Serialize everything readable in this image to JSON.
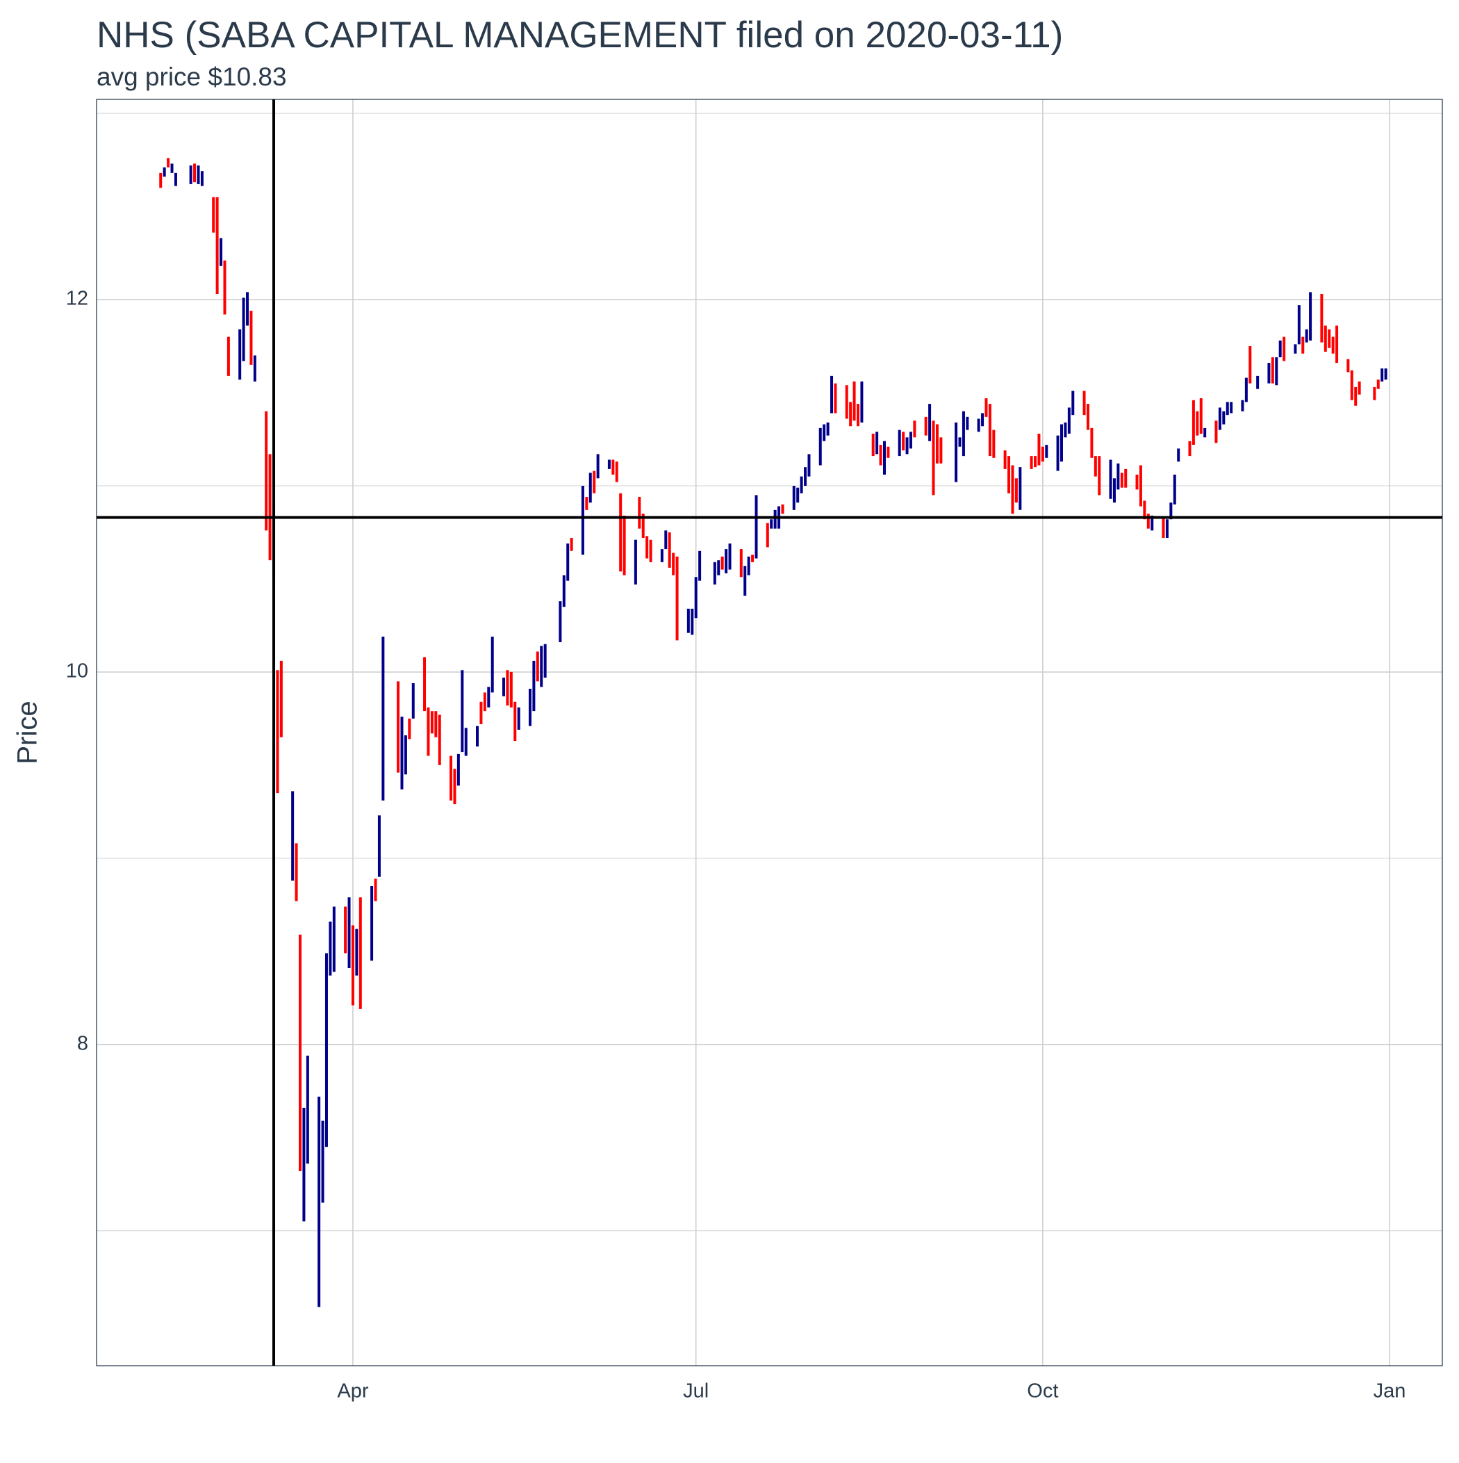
{
  "chart_data": {
    "type": "ohlc",
    "title": "NHS (SABA CAPITAL MANAGEMENT filed on 2020-03-11)",
    "subtitle": "avg price $10.83",
    "y_label": "Price",
    "xlim": [
      "2020-01-24",
      "2021-01-15"
    ],
    "xticks": [
      {
        "value": "2020-04-01",
        "label": "Apr"
      },
      {
        "value": "2020-07-01",
        "label": "Jul"
      },
      {
        "value": "2020-10-01",
        "label": "Oct"
      },
      {
        "value": "2021-01-01",
        "label": "Jan"
      }
    ],
    "ylim": [
      6.275,
      13.075
    ],
    "yticks": [
      8,
      10,
      12
    ],
    "grid": true,
    "minor_grid": true,
    "vline": "2020-03-11",
    "hline": 10.83,
    "x": [
      "2020-02-10",
      "2020-02-11",
      "2020-02-12",
      "2020-02-13",
      "2020-02-14",
      "2020-02-18",
      "2020-02-19",
      "2020-02-20",
      "2020-02-21",
      "2020-02-24",
      "2020-02-25",
      "2020-02-26",
      "2020-02-27",
      "2020-02-28",
      "2020-03-02",
      "2020-03-03",
      "2020-03-04",
      "2020-03-05",
      "2020-03-06",
      "2020-03-09",
      "2020-03-10",
      "2020-03-11",
      "2020-03-12",
      "2020-03-13",
      "2020-03-16",
      "2020-03-17",
      "2020-03-18",
      "2020-03-19",
      "2020-03-20",
      "2020-03-23",
      "2020-03-24",
      "2020-03-25",
      "2020-03-26",
      "2020-03-27",
      "2020-03-30",
      "2020-03-31",
      "2020-04-01",
      "2020-04-02",
      "2020-04-03",
      "2020-04-06",
      "2020-04-07",
      "2020-04-08",
      "2020-04-09",
      "2020-04-13",
      "2020-04-14",
      "2020-04-15",
      "2020-04-16",
      "2020-04-17",
      "2020-04-20",
      "2020-04-21",
      "2020-04-22",
      "2020-04-23",
      "2020-04-24",
      "2020-04-27",
      "2020-04-28",
      "2020-04-29",
      "2020-04-30",
      "2020-05-01",
      "2020-05-04",
      "2020-05-05",
      "2020-05-06",
      "2020-05-07",
      "2020-05-08",
      "2020-05-11",
      "2020-05-12",
      "2020-05-13",
      "2020-05-14",
      "2020-05-15",
      "2020-05-18",
      "2020-05-19",
      "2020-05-20",
      "2020-05-21",
      "2020-05-22",
      "2020-05-26",
      "2020-05-27",
      "2020-05-28",
      "2020-05-29",
      "2020-06-01",
      "2020-06-02",
      "2020-06-03",
      "2020-06-04",
      "2020-06-05",
      "2020-06-08",
      "2020-06-09",
      "2020-06-10",
      "2020-06-11",
      "2020-06-12",
      "2020-06-15",
      "2020-06-16",
      "2020-06-17",
      "2020-06-18",
      "2020-06-19",
      "2020-06-22",
      "2020-06-23",
      "2020-06-24",
      "2020-06-25",
      "2020-06-26",
      "2020-06-29",
      "2020-06-30",
      "2020-07-01",
      "2020-07-02",
      "2020-07-06",
      "2020-07-07",
      "2020-07-08",
      "2020-07-09",
      "2020-07-10",
      "2020-07-13",
      "2020-07-14",
      "2020-07-15",
      "2020-07-16",
      "2020-07-17",
      "2020-07-20",
      "2020-07-21",
      "2020-07-22",
      "2020-07-23",
      "2020-07-24",
      "2020-07-27",
      "2020-07-28",
      "2020-07-29",
      "2020-07-30",
      "2020-07-31",
      "2020-08-03",
      "2020-08-04",
      "2020-08-05",
      "2020-08-06",
      "2020-08-07",
      "2020-08-10",
      "2020-08-11",
      "2020-08-12",
      "2020-08-13",
      "2020-08-14",
      "2020-08-17",
      "2020-08-18",
      "2020-08-19",
      "2020-08-20",
      "2020-08-21",
      "2020-08-24",
      "2020-08-25",
      "2020-08-26",
      "2020-08-27",
      "2020-08-28",
      "2020-08-31",
      "2020-09-01",
      "2020-09-02",
      "2020-09-03",
      "2020-09-04",
      "2020-09-08",
      "2020-09-09",
      "2020-09-10",
      "2020-09-11",
      "2020-09-14",
      "2020-09-15",
      "2020-09-16",
      "2020-09-17",
      "2020-09-18",
      "2020-09-21",
      "2020-09-22",
      "2020-09-23",
      "2020-09-24",
      "2020-09-25",
      "2020-09-28",
      "2020-09-29",
      "2020-09-30",
      "2020-10-01",
      "2020-10-02",
      "2020-10-05",
      "2020-10-06",
      "2020-10-07",
      "2020-10-08",
      "2020-10-09",
      "2020-10-12",
      "2020-10-13",
      "2020-10-14",
      "2020-10-15",
      "2020-10-16",
      "2020-10-19",
      "2020-10-20",
      "2020-10-21",
      "2020-10-22",
      "2020-10-23",
      "2020-10-26",
      "2020-10-27",
      "2020-10-28",
      "2020-10-29",
      "2020-10-30",
      "2020-11-02",
      "2020-11-03",
      "2020-11-04",
      "2020-11-05",
      "2020-11-06",
      "2020-11-09",
      "2020-11-10",
      "2020-11-11",
      "2020-11-12",
      "2020-11-13",
      "2020-11-16",
      "2020-11-17",
      "2020-11-18",
      "2020-11-19",
      "2020-11-20",
      "2020-11-23",
      "2020-11-24",
      "2020-11-25",
      "2020-11-27",
      "2020-11-30",
      "2020-12-01",
      "2020-12-02",
      "2020-12-03",
      "2020-12-04",
      "2020-12-07",
      "2020-12-08",
      "2020-12-09",
      "2020-12-10",
      "2020-12-11",
      "2020-12-14",
      "2020-12-15",
      "2020-12-16",
      "2020-12-17",
      "2020-12-18",
      "2020-12-21",
      "2020-12-22",
      "2020-12-23",
      "2020-12-24",
      "2020-12-28",
      "2020-12-29",
      "2020-12-30",
      "2020-12-31"
    ],
    "high": [
      12.68,
      12.71,
      12.76,
      12.73,
      12.68,
      12.72,
      12.73,
      12.72,
      12.69,
      12.55,
      12.55,
      12.33,
      12.21,
      11.8,
      11.84,
      12.01,
      12.04,
      11.94,
      11.7,
      11.4,
      11.17,
      10.91,
      10.01,
      10.06,
      9.36,
      9.08,
      8.59,
      7.66,
      7.94,
      7.72,
      7.59,
      8.49,
      8.66,
      8.74,
      8.74,
      8.79,
      8.64,
      8.62,
      8.79,
      8.85,
      8.89,
      9.23,
      10.19,
      9.95,
      9.76,
      9.66,
      9.75,
      9.94,
      10.08,
      9.81,
      9.79,
      9.79,
      9.77,
      9.55,
      9.48,
      9.56,
      10.01,
      9.7,
      9.71,
      9.84,
      9.89,
      9.92,
      10.19,
      9.97,
      10.01,
      10.0,
      9.84,
      9.81,
      9.91,
      10.06,
      10.11,
      10.14,
      10.15,
      10.38,
      10.52,
      10.69,
      10.72,
      11.0,
      10.94,
      11.07,
      11.08,
      11.17,
      11.14,
      11.14,
      11.13,
      10.96,
      10.84,
      10.71,
      10.94,
      10.85,
      10.73,
      10.71,
      10.66,
      10.76,
      10.75,
      10.64,
      10.62,
      10.34,
      10.34,
      10.51,
      10.65,
      10.59,
      10.6,
      10.62,
      10.66,
      10.69,
      10.66,
      10.57,
      10.62,
      10.63,
      10.95,
      10.8,
      10.82,
      10.87,
      10.89,
      10.9,
      11.0,
      10.99,
      11.05,
      11.1,
      11.17,
      11.31,
      11.33,
      11.34,
      11.59,
      11.55,
      11.54,
      11.45,
      11.56,
      11.44,
      11.56,
      11.28,
      11.29,
      11.22,
      11.24,
      11.21,
      11.3,
      11.29,
      11.26,
      11.29,
      11.35,
      11.37,
      11.44,
      11.35,
      11.33,
      11.26,
      11.34,
      11.26,
      11.4,
      11.37,
      11.36,
      11.39,
      11.47,
      11.44,
      11.3,
      11.19,
      11.16,
      11.11,
      11.04,
      11.1,
      11.16,
      11.16,
      11.28,
      11.21,
      11.22,
      11.27,
      11.33,
      11.34,
      11.42,
      11.51,
      11.51,
      11.44,
      11.31,
      11.16,
      11.16,
      11.14,
      11.04,
      11.12,
      11.07,
      11.09,
      11.06,
      11.11,
      10.92,
      10.85,
      10.84,
      10.83,
      10.82,
      10.91,
      11.06,
      11.2,
      11.24,
      11.46,
      11.4,
      11.47,
      11.31,
      11.35,
      11.42,
      11.4,
      11.45,
      11.45,
      11.46,
      11.58,
      11.75,
      11.59,
      11.66,
      11.69,
      11.69,
      11.78,
      11.8,
      11.76,
      11.97,
      11.8,
      11.84,
      12.04,
      12.03,
      11.86,
      11.84,
      11.8,
      11.86,
      11.68,
      11.62,
      11.53,
      11.56,
      11.53,
      11.57,
      11.63,
      11.63
    ],
    "low": [
      12.6,
      12.66,
      12.71,
      12.68,
      12.61,
      12.62,
      12.63,
      12.62,
      12.61,
      12.36,
      12.03,
      12.18,
      11.92,
      11.59,
      11.57,
      11.67,
      11.86,
      11.65,
      11.56,
      10.76,
      10.6,
      10.51,
      9.35,
      9.65,
      8.88,
      8.77,
      7.32,
      7.05,
      7.36,
      6.59,
      7.15,
      7.45,
      8.37,
      8.39,
      8.49,
      8.41,
      8.21,
      8.37,
      8.19,
      8.45,
      8.77,
      8.9,
      9.31,
      9.46,
      9.37,
      9.45,
      9.64,
      9.75,
      9.79,
      9.55,
      9.67,
      9.65,
      9.5,
      9.31,
      9.29,
      9.39,
      9.57,
      9.55,
      9.6,
      9.72,
      9.79,
      9.81,
      9.89,
      9.87,
      9.82,
      9.81,
      9.63,
      9.69,
      9.71,
      9.79,
      9.95,
      9.92,
      9.97,
      10.16,
      10.35,
      10.49,
      10.65,
      10.63,
      10.87,
      10.91,
      10.96,
      11.04,
      11.09,
      11.06,
      11.02,
      10.54,
      10.52,
      10.47,
      10.77,
      10.72,
      10.61,
      10.59,
      10.59,
      10.66,
      10.56,
      10.52,
      10.17,
      10.21,
      10.2,
      10.29,
      10.49,
      10.47,
      10.52,
      10.55,
      10.53,
      10.55,
      10.51,
      10.41,
      10.52,
      10.59,
      10.61,
      10.67,
      10.77,
      10.77,
      10.77,
      10.85,
      10.87,
      10.91,
      10.96,
      11.0,
      11.05,
      11.11,
      11.24,
      11.27,
      11.39,
      11.39,
      11.36,
      11.32,
      11.35,
      11.32,
      11.34,
      11.16,
      11.17,
      11.11,
      11.06,
      11.15,
      11.16,
      11.19,
      11.17,
      11.2,
      11.26,
      11.27,
      11.24,
      10.95,
      11.12,
      11.12,
      11.02,
      11.21,
      11.16,
      11.3,
      11.29,
      11.32,
      11.37,
      11.16,
      11.15,
      11.09,
      10.96,
      10.85,
      10.91,
      10.87,
      11.09,
      11.1,
      11.11,
      11.13,
      11.15,
      11.08,
      11.13,
      11.26,
      11.28,
      11.38,
      11.38,
      11.3,
      11.15,
      11.05,
      10.95,
      10.93,
      10.91,
      10.98,
      10.99,
      10.99,
      10.98,
      10.89,
      10.82,
      10.77,
      10.76,
      10.72,
      10.72,
      10.82,
      10.9,
      11.13,
      11.16,
      11.22,
      11.27,
      11.28,
      11.26,
      11.23,
      11.3,
      11.33,
      11.38,
      11.39,
      11.4,
      11.45,
      11.55,
      11.52,
      11.55,
      11.55,
      11.54,
      11.69,
      11.67,
      11.71,
      11.76,
      11.71,
      11.77,
      11.78,
      11.77,
      11.72,
      11.74,
      11.71,
      11.66,
      11.61,
      11.46,
      11.43,
      11.49,
      11.46,
      11.52,
      11.56,
      11.57
    ],
    "colors": [
      "#ff0000",
      "#00008b",
      "#ff0000",
      "#00008b",
      "#00008b",
      "#00008b",
      "#ff0000",
      "#00008b",
      "#00008b",
      "#ff0000",
      "#ff0000",
      "#00008b",
      "#ff0000",
      "#ff0000",
      "#00008b",
      "#00008b",
      "#00008b",
      "#ff0000",
      "#00008b",
      "#ff0000",
      "#ff0000",
      "#00008b",
      "#ff0000",
      "#ff0000",
      "#00008b",
      "#ff0000",
      "#ff0000",
      "#00008b",
      "#00008b",
      "#00008b",
      "#00008b",
      "#00008b",
      "#00008b",
      "#00008b",
      "#ff0000",
      "#00008b",
      "#ff0000",
      "#00008b",
      "#ff0000",
      "#00008b",
      "#ff0000",
      "#00008b",
      "#00008b",
      "#ff0000",
      "#00008b",
      "#00008b",
      "#ff0000",
      "#00008b",
      "#ff0000",
      "#ff0000",
      "#ff0000",
      "#ff0000",
      "#ff0000",
      "#ff0000",
      "#ff0000",
      "#00008b",
      "#00008b",
      "#00008b",
      "#00008b",
      "#ff0000",
      "#ff0000",
      "#00008b",
      "#00008b",
      "#00008b",
      "#ff0000",
      "#ff0000",
      "#ff0000",
      "#00008b",
      "#00008b",
      "#00008b",
      "#ff0000",
      "#00008b",
      "#00008b",
      "#00008b",
      "#00008b",
      "#00008b",
      "#ff0000",
      "#00008b",
      "#ff0000",
      "#00008b",
      "#ff0000",
      "#00008b",
      "#00008b",
      "#ff0000",
      "#ff0000",
      "#ff0000",
      "#ff0000",
      "#00008b",
      "#ff0000",
      "#ff0000",
      "#ff0000",
      "#ff0000",
      "#00008b",
      "#00008b",
      "#ff0000",
      "#ff0000",
      "#ff0000",
      "#00008b",
      "#00008b",
      "#00008b",
      "#00008b",
      "#00008b",
      "#00008b",
      "#ff0000",
      "#00008b",
      "#00008b",
      "#ff0000",
      "#00008b",
      "#00008b",
      "#ff0000",
      "#00008b",
      "#ff0000",
      "#00008b",
      "#00008b",
      "#00008b",
      "#ff0000",
      "#00008b",
      "#00008b",
      "#00008b",
      "#00008b",
      "#00008b",
      "#00008b",
      "#00008b",
      "#00008b",
      "#00008b",
      "#ff0000",
      "#ff0000",
      "#ff0000",
      "#ff0000",
      "#ff0000",
      "#00008b",
      "#ff0000",
      "#00008b",
      "#ff0000",
      "#00008b",
      "#ff0000",
      "#00008b",
      "#ff0000",
      "#00008b",
      "#00008b",
      "#ff0000",
      "#ff0000",
      "#00008b",
      "#ff0000",
      "#ff0000",
      "#ff0000",
      "#00008b",
      "#00008b",
      "#00008b",
      "#00008b",
      "#00008b",
      "#00008b",
      "#ff0000",
      "#ff0000",
      "#ff0000",
      "#ff0000",
      "#ff0000",
      "#ff0000",
      "#ff0000",
      "#00008b",
      "#ff0000",
      "#ff0000",
      "#ff0000",
      "#ff0000",
      "#00008b",
      "#00008b",
      "#00008b",
      "#00008b",
      "#00008b",
      "#00008b",
      "#ff0000",
      "#ff0000",
      "#ff0000",
      "#ff0000",
      "#ff0000",
      "#00008b",
      "#00008b",
      "#00008b",
      "#ff0000",
      "#ff0000",
      "#ff0000",
      "#ff0000",
      "#ff0000",
      "#ff0000",
      "#00008b",
      "#ff0000",
      "#00008b",
      "#00008b",
      "#00008b",
      "#00008b",
      "#ff0000",
      "#ff0000",
      "#ff0000",
      "#ff0000",
      "#00008b",
      "#ff0000",
      "#00008b",
      "#00008b",
      "#00008b",
      "#00008b",
      "#00008b",
      "#00008b",
      "#ff0000",
      "#00008b",
      "#00008b",
      "#ff0000",
      "#00008b",
      "#00008b",
      "#ff0000",
      "#00008b",
      "#00008b",
      "#ff0000",
      "#00008b",
      "#00008b",
      "#ff0000",
      "#ff0000",
      "#ff0000",
      "#ff0000",
      "#ff0000",
      "#ff0000",
      "#ff0000",
      "#ff0000",
      "#ff0000",
      "#ff0000",
      "#ff0000",
      "#00008b",
      "#00008b"
    ]
  }
}
